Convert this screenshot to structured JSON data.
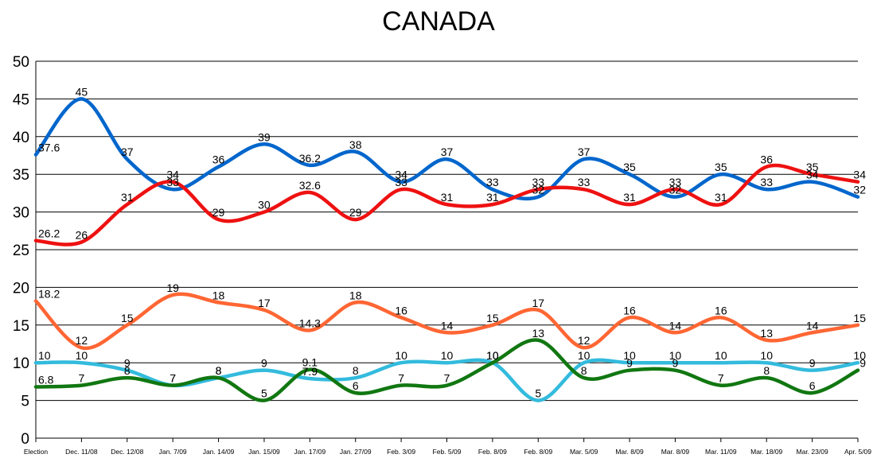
{
  "chart_data": {
    "type": "line",
    "title": "CANADA",
    "xlabel": "",
    "ylabel": "",
    "ylim": [
      0,
      50
    ],
    "ytick_step": 5,
    "grid": true,
    "categories": [
      "Election",
      "Dec. 11/08",
      "Dec. 12/08",
      "Jan. 7/09",
      "Jan. 14/09",
      "Jan. 15/09",
      "Jan. 17/09",
      "Jan. 27/09",
      "Feb. 3/09",
      "Feb. 5/09",
      "Feb. 8/09",
      "Feb. 8/09",
      "Mar. 5/09",
      "Mar. 8/09",
      "Mar. 8/09",
      "Mar. 11/09",
      "Mar. 18/09",
      "Mar. 23/09",
      "Apr. 5/09"
    ],
    "series": [
      {
        "color": "#0066cc",
        "values": [
          37.6,
          45,
          37,
          33,
          36,
          39,
          36.2,
          38,
          34,
          37,
          33,
          32,
          37,
          35,
          32,
          35,
          33,
          34,
          32
        ]
      },
      {
        "color": "#ee1111",
        "values": [
          26.2,
          26,
          31,
          34,
          29,
          30,
          32.6,
          29,
          33,
          31,
          31,
          33,
          33,
          31,
          33,
          31,
          36,
          35,
          34
        ]
      },
      {
        "color": "#ff6633",
        "values": [
          18.2,
          12,
          15,
          19,
          18,
          17,
          14.3,
          18,
          16,
          14,
          15,
          17,
          12,
          16,
          14,
          16,
          13,
          14,
          15
        ]
      },
      {
        "color": "#33bbdd",
        "values": [
          10,
          10,
          9,
          7,
          8,
          9,
          7.9,
          8,
          10,
          10,
          10,
          5,
          10,
          10,
          10,
          10,
          10,
          9,
          10
        ]
      },
      {
        "color": "#117711",
        "values": [
          6.8,
          7,
          8,
          7,
          8,
          5,
          9.1,
          6,
          7,
          7,
          10,
          13,
          8,
          9,
          9,
          7,
          8,
          6,
          9
        ]
      }
    ]
  }
}
